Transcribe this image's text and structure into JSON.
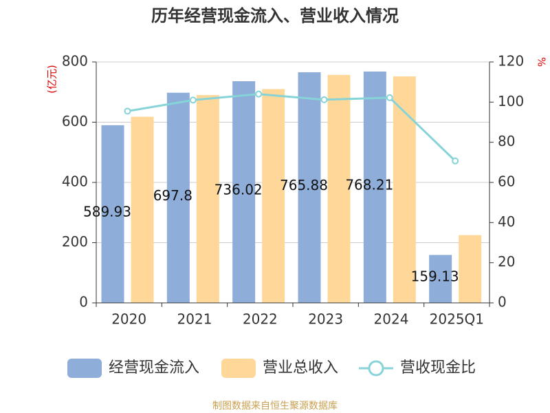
{
  "chart_data": {
    "type": "bar_line",
    "title": "历年经营现金流入、营业收入情况",
    "y_label": "(亿元)",
    "y2_label": "%",
    "categories": [
      "2020",
      "2021",
      "2022",
      "2023",
      "2024",
      "2025Q1"
    ],
    "series": [
      {
        "name": "经营现金流入",
        "color": "#8eadd9",
        "type": "bar",
        "values": [
          589.93,
          697.8,
          736.02,
          765.88,
          768.21,
          159.13
        ]
      },
      {
        "name": "营业总收入",
        "color": "#ffd899",
        "type": "bar",
        "values": [
          618,
          690,
          710,
          757,
          752,
          225
        ]
      },
      {
        "name": "营收现金比",
        "color": "#86d3d8",
        "type": "line",
        "axis": "y2",
        "values": [
          95.5,
          101,
          104,
          101.2,
          102.2,
          70.7
        ]
      }
    ],
    "ylim": [
      0,
      800
    ],
    "yticks": [
      0,
      200,
      400,
      600,
      800
    ],
    "y2lim": [
      0,
      120
    ],
    "y2ticks": [
      0,
      20,
      40,
      60,
      80,
      100,
      120
    ],
    "grid": true,
    "footer": "制图数据来自恒生聚源数据库"
  }
}
